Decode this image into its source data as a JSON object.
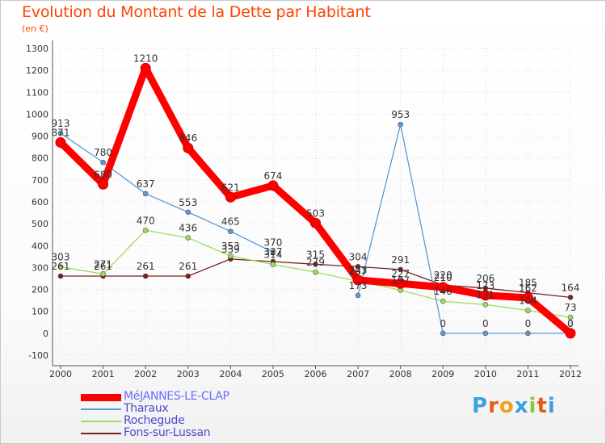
{
  "title": "Evolution du Montant de la Dette par Habitant",
  "subtitle": "(en €)",
  "logo": "Proxiti",
  "chart_data": {
    "type": "line",
    "x": [
      "2000",
      "2001",
      "2002",
      "2003",
      "2004",
      "2005",
      "2006",
      "2007",
      "2008",
      "2009",
      "2010",
      "2011",
      "2012"
    ],
    "ylim": [
      -100,
      1300
    ],
    "yticks": [
      -100,
      0,
      100,
      200,
      300,
      400,
      500,
      600,
      700,
      800,
      900,
      1000,
      1100,
      1200,
      1300
    ],
    "grid": true,
    "legend": "bottom-left",
    "series": [
      {
        "name": "MéJANNES-LE-CLAP",
        "color": "#ff0000",
        "values": [
          871,
          680,
          1210,
          846,
          621,
          674,
          503,
          243,
          227,
          210,
          173,
          162,
          0
        ],
        "labels": [
          "871",
          "680",
          "1210",
          "846",
          "621",
          "674",
          "503",
          "243",
          "227",
          "210",
          "173",
          "162",
          "0"
        ]
      },
      {
        "name": "Tharaux",
        "color": "#5b9bd5",
        "values": [
          913,
          780,
          637,
          553,
          465,
          370,
          null,
          173,
          953,
          0,
          0,
          0,
          0
        ],
        "labels": [
          "913",
          "780",
          "637",
          "553",
          "465",
          "370",
          "",
          "173",
          "953",
          "0",
          "0",
          "0",
          "0"
        ]
      },
      {
        "name": "Rochegude",
        "color": "#99e05a",
        "values": [
          303,
          271,
          470,
          436,
          353,
          314,
          279,
          237,
          197,
          146,
          131,
          104,
          73
        ],
        "labels": [
          "303",
          "271",
          "470",
          "436",
          "353",
          "314",
          "279",
          "237",
          "197",
          "146",
          "131",
          "104",
          "73"
        ]
      },
      {
        "name": "Fons-sur-Lussan",
        "color": "#7a1f1f",
        "values": [
          261,
          261,
          261,
          261,
          339,
          327,
          315,
          304,
          291,
          220,
          206,
          185,
          164
        ],
        "labels": [
          "261",
          "261",
          "261",
          "261",
          "339",
          "327",
          "315",
          "304",
          "291",
          "220",
          "206",
          "185",
          "164"
        ]
      }
    ]
  }
}
